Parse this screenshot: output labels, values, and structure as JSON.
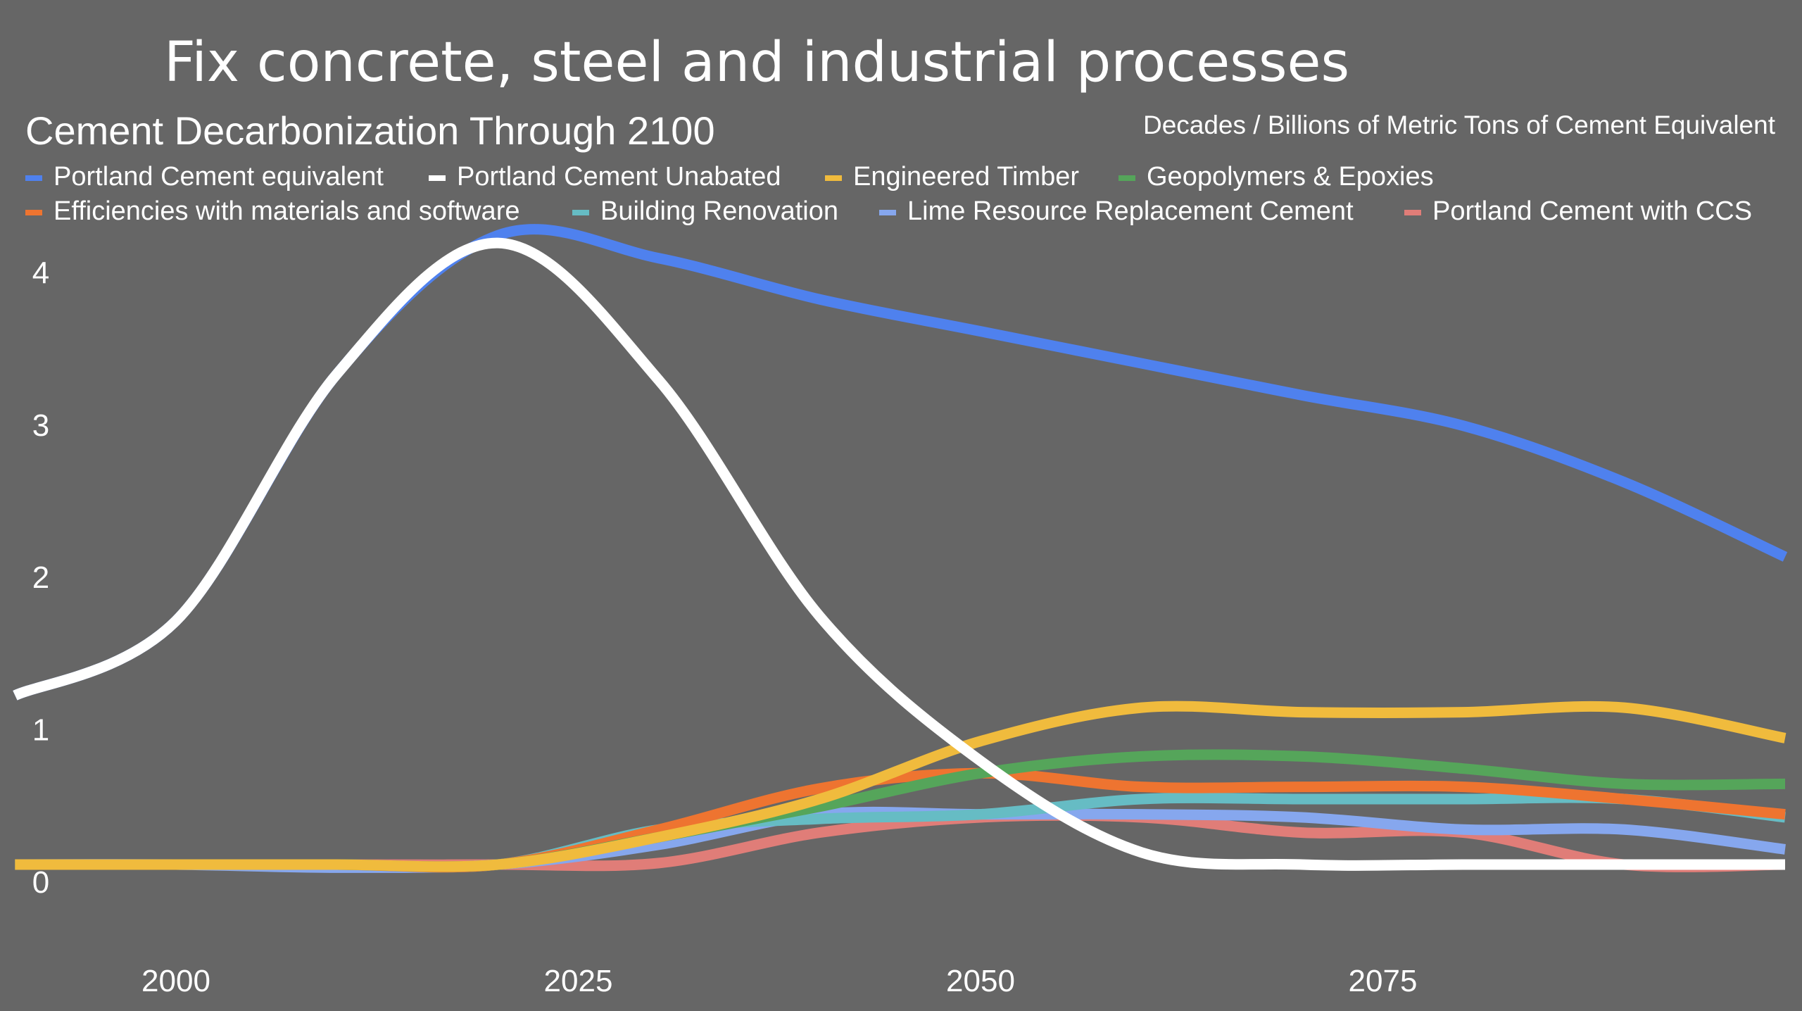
{
  "slide_title": "Fix concrete, steel and industrial processes",
  "chart_data": {
    "type": "line",
    "title": "Cement Decarbonization Through 2100",
    "units_note": "Decades / Billions of Metric Tons of Cement Equivalent",
    "xlabel": "",
    "ylabel": "",
    "x": [
      1990,
      2000,
      2010,
      2020,
      2030,
      2040,
      2050,
      2060,
      2070,
      2080,
      2090,
      2100
    ],
    "x_ticks": [
      "2000",
      "2025",
      "2050",
      "2075"
    ],
    "x_tick_values": [
      2000,
      2025,
      2050,
      2075
    ],
    "y_ticks": [
      "0",
      "1",
      "2",
      "3",
      "4"
    ],
    "y_tick_values": [
      0,
      1,
      2,
      3,
      4
    ],
    "xlim": [
      1990,
      2100
    ],
    "ylim": [
      0,
      4.3
    ],
    "grid": false,
    "legend_position": "top",
    "background": "#666666",
    "series": [
      {
        "name": "Portland Cement equivalent",
        "color": "#4f81ee",
        "values": [
          1.23,
          1.72,
          3.34,
          4.25,
          4.1,
          3.83,
          3.62,
          3.41,
          3.2,
          3.0,
          2.63,
          2.14
        ]
      },
      {
        "name": "Portland Cement Unabated",
        "color": "#ffffff",
        "values": [
          1.23,
          1.72,
          3.34,
          4.2,
          3.3,
          1.75,
          0.8,
          0.2,
          0.12,
          0.12,
          0.12,
          0.12
        ]
      },
      {
        "name": "Engineered Timber",
        "color": "#f0bb3d",
        "values": [
          0.12,
          0.12,
          0.12,
          0.12,
          0.3,
          0.55,
          0.93,
          1.15,
          1.12,
          1.12,
          1.15,
          0.95
        ]
      },
      {
        "name": "Geopolymers & Epoxies",
        "color": "#55a55a",
        "values": [
          0.12,
          0.12,
          0.12,
          0.12,
          0.3,
          0.5,
          0.72,
          0.83,
          0.83,
          0.75,
          0.65,
          0.65
        ]
      },
      {
        "name": "Efficiencies with materials and software",
        "color": "#ee7430",
        "values": [
          0.12,
          0.12,
          0.12,
          0.12,
          0.35,
          0.62,
          0.72,
          0.63,
          0.63,
          0.63,
          0.55,
          0.45
        ]
      },
      {
        "name": "Building Renovation",
        "color": "#66bcc4",
        "values": [
          0.12,
          0.12,
          0.12,
          0.12,
          0.35,
          0.42,
          0.45,
          0.55,
          0.55,
          0.55,
          0.55,
          0.43
        ]
      },
      {
        "name": "Lime Resource Replacement Cement",
        "color": "#86a7ee",
        "values": [
          0.12,
          0.12,
          0.1,
          0.12,
          0.25,
          0.45,
          0.45,
          0.45,
          0.43,
          0.35,
          0.35,
          0.22
        ]
      },
      {
        "name": "Portland Cement with CCS",
        "color": "#e07d78",
        "values": [
          0.12,
          0.12,
          0.12,
          0.12,
          0.13,
          0.33,
          0.43,
          0.43,
          0.33,
          0.33,
          0.12,
          0.12
        ]
      }
    ]
  }
}
